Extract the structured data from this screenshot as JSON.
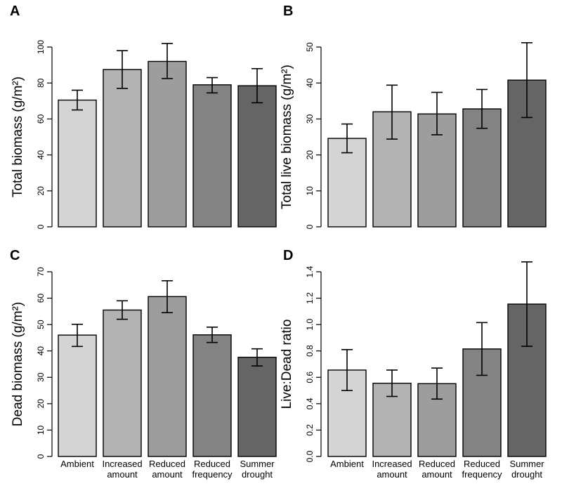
{
  "chart_data": [
    {
      "type": "bar",
      "panel": "A",
      "ylabel": "Total biomass (g/m²)",
      "ylim": [
        0,
        100
      ],
      "yticks": [
        "0",
        "20",
        "40",
        "60",
        "80",
        "100"
      ],
      "categories": [
        "Ambient",
        "Increased amount",
        "Reduced amount",
        "Reduced frequency",
        "Summer drought"
      ],
      "values": [
        70.5,
        87.5,
        92,
        79,
        78.5
      ],
      "error_low": [
        65,
        77,
        82.5,
        74.5,
        69
      ],
      "error_high": [
        76,
        98,
        102,
        83,
        88
      ],
      "show_xlabels": false,
      "colors": [
        "#d4d4d4",
        "#b3b3b3",
        "#9d9d9d",
        "#838383",
        "#656565"
      ]
    },
    {
      "type": "bar",
      "panel": "B",
      "ylabel": "Total live biomass (g/m²)",
      "ylim": [
        0,
        50
      ],
      "yticks": [
        "0",
        "10",
        "20",
        "30",
        "40",
        "50"
      ],
      "categories": [
        "Ambient",
        "Increased amount",
        "Reduced amount",
        "Reduced frequency",
        "Summer drought"
      ],
      "values": [
        24.6,
        32,
        31.4,
        32.8,
        40.8
      ],
      "error_low": [
        20.6,
        24.4,
        25.6,
        27.4,
        30.4
      ],
      "error_high": [
        28.6,
        39.4,
        37.4,
        38.2,
        51.2
      ],
      "show_xlabels": false,
      "colors": [
        "#d4d4d4",
        "#b3b3b3",
        "#9d9d9d",
        "#838383",
        "#656565"
      ]
    },
    {
      "type": "bar",
      "panel": "C",
      "ylabel": "Dead biomass (g/m²)",
      "ylim": [
        0,
        70
      ],
      "yticks": [
        "0",
        "10",
        "20",
        "30",
        "40",
        "50",
        "60",
        "70"
      ],
      "categories": [
        "Ambient",
        "Increased amount",
        "Reduced amount",
        "Reduced frequency",
        "Summer drought"
      ],
      "values": [
        46,
        55.5,
        60.6,
        46.1,
        37.6
      ],
      "error_low": [
        41.7,
        52,
        54.5,
        43.2,
        34.3
      ],
      "error_high": [
        50.1,
        59,
        66.6,
        49,
        40.8
      ],
      "show_xlabels": true,
      "colors": [
        "#d4d4d4",
        "#b3b3b3",
        "#9d9d9d",
        "#838383",
        "#656565"
      ]
    },
    {
      "type": "bar",
      "panel": "D",
      "ylabel": "Live:Dead ratio",
      "ylim": [
        0,
        1.4
      ],
      "yticks": [
        "0.0",
        "0.2",
        "0.4",
        "0.6",
        "0.8",
        "1.0",
        "1.2",
        "1.4"
      ],
      "categories": [
        "Ambient",
        "Increased amount",
        "Reduced amount",
        "Reduced frequency",
        "Summer drought"
      ],
      "values": [
        0.655,
        0.555,
        0.552,
        0.815,
        1.155
      ],
      "error_low": [
        0.5,
        0.455,
        0.435,
        0.615,
        0.835
      ],
      "error_high": [
        0.81,
        0.655,
        0.67,
        1.015,
        1.475
      ],
      "show_xlabels": true,
      "colors": [
        "#d4d4d4",
        "#b3b3b3",
        "#9d9d9d",
        "#838383",
        "#656565"
      ]
    }
  ]
}
